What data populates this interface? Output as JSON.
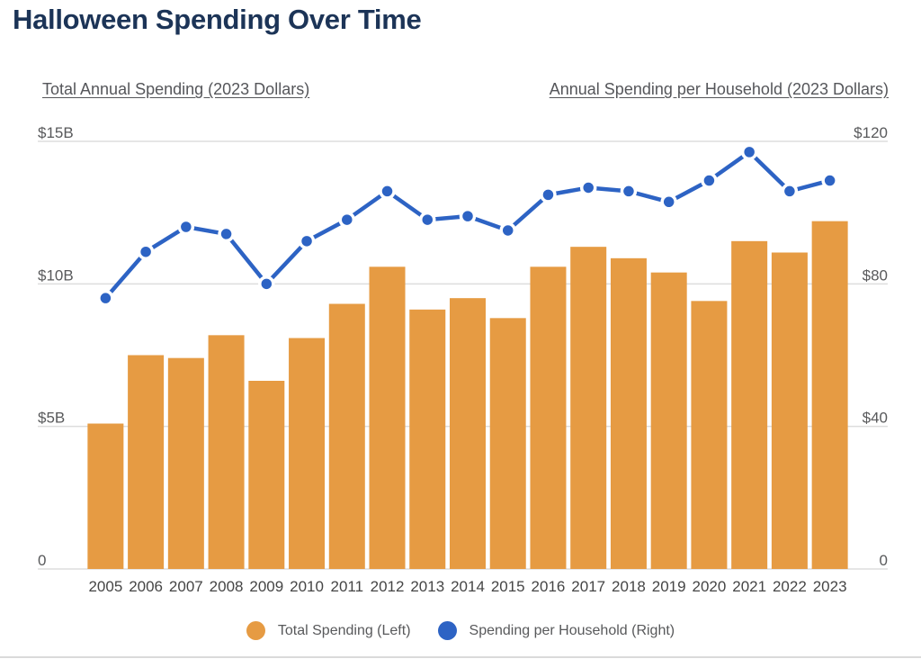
{
  "header": {
    "title": "Halloween Spending Over Time"
  },
  "colors": {
    "title_navy": "#1c3457",
    "bar_orange": "#e69b43",
    "line_blue": "#2d63c4",
    "gridline": "#dddddd",
    "tick_gray": "#58595b"
  },
  "chart_data": {
    "type": "bar",
    "title": "Halloween Spending Over Time",
    "categories": [
      "2005",
      "2006",
      "2007",
      "2008",
      "2009",
      "2010",
      "2011",
      "2012",
      "2013",
      "2014",
      "2015",
      "2016",
      "2017",
      "2018",
      "2019",
      "2020",
      "2021",
      "2022",
      "2023"
    ],
    "series": [
      {
        "name": "Total Spending (Left)",
        "mark": "bar",
        "axis": "left",
        "unit": "billions of 2023 dollars",
        "values": [
          5.1,
          7.5,
          7.4,
          8.2,
          6.6,
          8.1,
          9.3,
          10.6,
          9.1,
          9.5,
          8.8,
          10.6,
          11.3,
          10.9,
          10.4,
          9.4,
          11.5,
          11.1,
          12.2
        ]
      },
      {
        "name": "Spending per Household (Right)",
        "mark": "line",
        "axis": "right",
        "unit": "2023 dollars",
        "values": [
          76,
          89,
          96,
          94,
          80,
          92,
          98,
          106,
          98,
          99,
          95,
          105,
          107,
          106,
          103,
          109,
          117,
          106,
          109
        ]
      }
    ],
    "left_axis": {
      "title": "Total Annual Spending (2023 Dollars)",
      "range": [
        0,
        15
      ],
      "tick_values": [
        0,
        5,
        10,
        15
      ],
      "tick_labels": [
        "0",
        "$5B",
        "$10B",
        "$15B"
      ]
    },
    "right_axis": {
      "title": "Annual Spending per Household (2023 Dollars)",
      "range": [
        0,
        120
      ],
      "tick_values": [
        0,
        40,
        80,
        120
      ],
      "tick_labels": [
        "0",
        "$40",
        "$80",
        "$120"
      ]
    },
    "grid": true,
    "legend_position": "bottom"
  },
  "legend": {
    "items": [
      {
        "label": "Total Spending (Left)",
        "color": "#e69b43"
      },
      {
        "label": "Spending per Household (Right)",
        "color": "#2d63c4"
      }
    ]
  }
}
